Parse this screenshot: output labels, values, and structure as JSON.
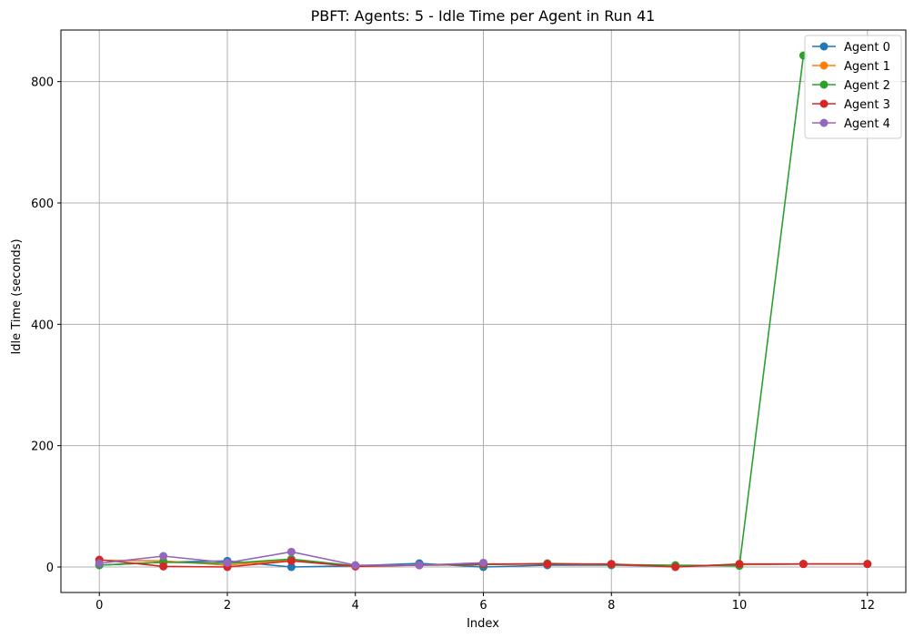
{
  "chart_data": {
    "type": "line",
    "title": "PBFT: Agents: 5 - Idle Time per Agent in Run 41",
    "xlabel": "Index",
    "ylabel": "Idle Time (seconds)",
    "xlim": [
      -0.6,
      12.6
    ],
    "ylim": [
      -42,
      885
    ],
    "xticks": [
      0,
      2,
      4,
      6,
      8,
      10,
      12
    ],
    "yticks": [
      0,
      200,
      400,
      600,
      800
    ],
    "grid": true,
    "legend_position": "top-right",
    "series": [
      {
        "name": "Agent 0",
        "color": "#1f77b4",
        "x": [
          0,
          1,
          2,
          3,
          4,
          5,
          6,
          7,
          8,
          9,
          10,
          11,
          12
        ],
        "values": [
          3,
          8,
          10,
          0,
          2,
          6,
          0,
          3,
          3,
          1,
          4,
          5,
          5
        ]
      },
      {
        "name": "Agent 1",
        "color": "#ff7f0e",
        "x": [
          0,
          1,
          2,
          3,
          4,
          5,
          6,
          7,
          8,
          9,
          10,
          11,
          12
        ],
        "values": [
          11,
          10,
          3,
          12,
          1,
          3,
          4,
          5,
          4,
          1,
          4,
          5,
          5
        ]
      },
      {
        "name": "Agent 2",
        "color": "#2ca02c",
        "x": [
          0,
          1,
          2,
          3,
          4,
          5,
          6,
          7,
          8,
          9,
          10,
          11
        ],
        "values": [
          3,
          8,
          6,
          13,
          2,
          3,
          4,
          6,
          4,
          3,
          2,
          843
        ]
      },
      {
        "name": "Agent 3",
        "color": "#d62728",
        "x": [
          0,
          1,
          2,
          3,
          4,
          5,
          6,
          7,
          8,
          9,
          10,
          11,
          12
        ],
        "values": [
          12,
          1,
          0,
          10,
          1,
          3,
          5,
          5,
          5,
          0,
          5,
          5,
          5
        ]
      },
      {
        "name": "Agent 4",
        "color": "#9467bd",
        "x": [
          0,
          1,
          2,
          3,
          4,
          5,
          6
        ],
        "values": [
          6,
          18,
          7,
          25,
          3,
          3,
          7
        ]
      }
    ]
  }
}
